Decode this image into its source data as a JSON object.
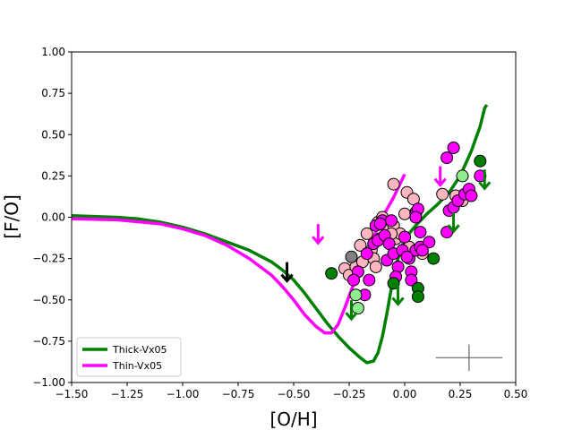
{
  "chart_data": {
    "type": "scatter",
    "xlabel": "[O/H]",
    "ylabel": "[F/O]",
    "xlim": [
      -1.5,
      0.5
    ],
    "ylim": [
      -1.0,
      1.0
    ],
    "x_ticks": [
      "−1.50",
      "−1.25",
      "−1.00",
      "−0.75",
      "−0.50",
      "−0.25",
      "0.00",
      "0.25",
      "0.50"
    ],
    "y_ticks": [
      "−1.00",
      "−0.75",
      "−0.50",
      "−0.25",
      "0.00",
      "0.25",
      "0.50",
      "0.75",
      "1.00"
    ],
    "grid": false,
    "legend_position": "lower-left",
    "lines": [
      {
        "name": "Thick-Vx05",
        "color": "#008000",
        "points": [
          [
            -1.5,
            0.01
          ],
          [
            -1.4,
            0.005
          ],
          [
            -1.3,
            0.0
          ],
          [
            -1.2,
            -0.01
          ],
          [
            -1.1,
            -0.03
          ],
          [
            -1.0,
            -0.06
          ],
          [
            -0.9,
            -0.1
          ],
          [
            -0.8,
            -0.15
          ],
          [
            -0.7,
            -0.2
          ],
          [
            -0.6,
            -0.27
          ],
          [
            -0.55,
            -0.32
          ],
          [
            -0.5,
            -0.38
          ],
          [
            -0.45,
            -0.46
          ],
          [
            -0.4,
            -0.55
          ],
          [
            -0.35,
            -0.64
          ],
          [
            -0.3,
            -0.72
          ],
          [
            -0.25,
            -0.79
          ],
          [
            -0.2,
            -0.85
          ],
          [
            -0.17,
            -0.88
          ],
          [
            -0.14,
            -0.87
          ],
          [
            -0.12,
            -0.82
          ],
          [
            -0.1,
            -0.72
          ],
          [
            -0.08,
            -0.58
          ],
          [
            -0.06,
            -0.43
          ],
          [
            -0.03,
            -0.25
          ],
          [
            0.0,
            -0.13
          ],
          [
            0.05,
            -0.05
          ],
          [
            0.1,
            0.02
          ],
          [
            0.15,
            0.08
          ],
          [
            0.2,
            0.15
          ],
          [
            0.25,
            0.25
          ],
          [
            0.3,
            0.4
          ],
          [
            0.34,
            0.55
          ],
          [
            0.36,
            0.66
          ],
          [
            0.37,
            0.68
          ]
        ]
      },
      {
        "name": "Thin-Vx05",
        "color": "#ff00ff",
        "points": [
          [
            -1.5,
            -0.01
          ],
          [
            -1.3,
            -0.015
          ],
          [
            -1.1,
            -0.04
          ],
          [
            -1.0,
            -0.07
          ],
          [
            -0.9,
            -0.11
          ],
          [
            -0.8,
            -0.17
          ],
          [
            -0.7,
            -0.25
          ],
          [
            -0.6,
            -0.35
          ],
          [
            -0.55,
            -0.42
          ],
          [
            -0.5,
            -0.5
          ],
          [
            -0.45,
            -0.59
          ],
          [
            -0.4,
            -0.66
          ],
          [
            -0.36,
            -0.7
          ],
          [
            -0.33,
            -0.7
          ],
          [
            -0.3,
            -0.65
          ],
          [
            -0.27,
            -0.55
          ],
          [
            -0.24,
            -0.44
          ],
          [
            -0.2,
            -0.3
          ],
          [
            -0.15,
            -0.15
          ],
          [
            -0.1,
            0.0
          ],
          [
            -0.05,
            0.12
          ],
          [
            0.0,
            0.26
          ]
        ]
      }
    ],
    "series": [
      {
        "label": "pink",
        "color": "#ffb6c1",
        "points": [
          [
            -0.27,
            -0.31
          ],
          [
            -0.25,
            -0.35
          ],
          [
            -0.22,
            -0.3
          ],
          [
            -0.19,
            -0.27
          ],
          [
            -0.2,
            -0.17
          ],
          [
            -0.17,
            -0.1
          ],
          [
            -0.15,
            -0.2
          ],
          [
            -0.14,
            -0.25
          ],
          [
            -0.12,
            -0.03
          ],
          [
            -0.1,
            0.0
          ],
          [
            -0.08,
            -0.06
          ],
          [
            -0.05,
            -0.05
          ],
          [
            -0.04,
            -0.13
          ],
          [
            -0.02,
            -0.1
          ],
          [
            0.0,
            0.02
          ],
          [
            0.01,
            0.15
          ],
          [
            0.04,
            0.11
          ],
          [
            -0.05,
            0.2
          ],
          [
            0.02,
            -0.18
          ],
          [
            0.05,
            0.03
          ],
          [
            0.08,
            -0.22
          ],
          [
            0.17,
            0.14
          ],
          [
            0.23,
            0.13
          ],
          [
            0.26,
            0.1
          ],
          [
            -0.13,
            -0.3
          ],
          [
            -0.11,
            -0.13
          ],
          [
            -0.06,
            -0.1
          ]
        ]
      },
      {
        "label": "magenta",
        "color": "#ff00ff",
        "points": [
          [
            -0.18,
            -0.47
          ],
          [
            -0.16,
            -0.38
          ],
          [
            -0.21,
            -0.33
          ],
          [
            -0.23,
            -0.38
          ],
          [
            -0.17,
            -0.22
          ],
          [
            -0.14,
            -0.16
          ],
          [
            -0.13,
            -0.05
          ],
          [
            -0.12,
            -0.14
          ],
          [
            -0.1,
            -0.02
          ],
          [
            -0.09,
            -0.11
          ],
          [
            -0.07,
            -0.16
          ],
          [
            -0.06,
            -0.02
          ],
          [
            -0.08,
            -0.26
          ],
          [
            -0.05,
            -0.22
          ],
          [
            -0.03,
            -0.3
          ],
          [
            -0.04,
            -0.36
          ],
          [
            -0.01,
            -0.2
          ],
          [
            0.0,
            -0.12
          ],
          [
            0.02,
            -0.25
          ],
          [
            0.03,
            -0.33
          ],
          [
            0.03,
            -0.38
          ],
          [
            0.05,
            0.02
          ],
          [
            0.06,
            0.05
          ],
          [
            0.05,
            -0.2
          ],
          [
            0.07,
            -0.09
          ],
          [
            0.07,
            -0.18
          ],
          [
            0.11,
            -0.15
          ],
          [
            0.19,
            -0.09
          ],
          [
            0.19,
            0.36
          ],
          [
            0.22,
            0.42
          ],
          [
            0.2,
            0.04
          ],
          [
            0.22,
            0.06
          ],
          [
            0.24,
            0.1
          ],
          [
            0.27,
            0.14
          ],
          [
            0.29,
            0.17
          ],
          [
            0.3,
            0.13
          ],
          [
            0.34,
            0.25
          ],
          [
            -0.11,
            -0.04
          ],
          [
            0.01,
            -0.24
          ],
          [
            0.05,
            0.0
          ],
          [
            0.08,
            -0.2
          ]
        ]
      },
      {
        "label": "green",
        "color": "#008000",
        "points": [
          [
            -0.33,
            -0.34
          ],
          [
            -0.05,
            -0.4
          ],
          [
            0.06,
            -0.43
          ],
          [
            0.06,
            -0.48
          ],
          [
            0.13,
            -0.25
          ],
          [
            0.34,
            0.34
          ]
        ]
      },
      {
        "label": "lightgreen",
        "color": "#90ee90",
        "points": [
          [
            -0.22,
            -0.47
          ],
          [
            -0.21,
            -0.55
          ],
          [
            0.26,
            0.25
          ]
        ]
      },
      {
        "label": "gray",
        "color": "#808080",
        "points": [
          [
            -0.24,
            -0.24
          ]
        ]
      }
    ],
    "upper_limits": [
      {
        "x": -0.53,
        "y": -0.38,
        "color": "#000000"
      },
      {
        "x": -0.39,
        "y": -0.15,
        "color": "#ff00ff"
      },
      {
        "x": -0.24,
        "y": -0.61,
        "color": "#008000"
      },
      {
        "x": -0.03,
        "y": -0.52,
        "color": "#008000"
      },
      {
        "x": 0.22,
        "y": -0.08,
        "color": "#008000"
      },
      {
        "x": 0.36,
        "y": 0.18,
        "color": "#008000"
      },
      {
        "x": 0.16,
        "y": 0.2,
        "color": "#ff00ff"
      }
    ],
    "error_bar": {
      "x": 0.29,
      "y": -0.85,
      "xerr": 0.15,
      "yerr": 0.08,
      "color": "#666666"
    }
  }
}
